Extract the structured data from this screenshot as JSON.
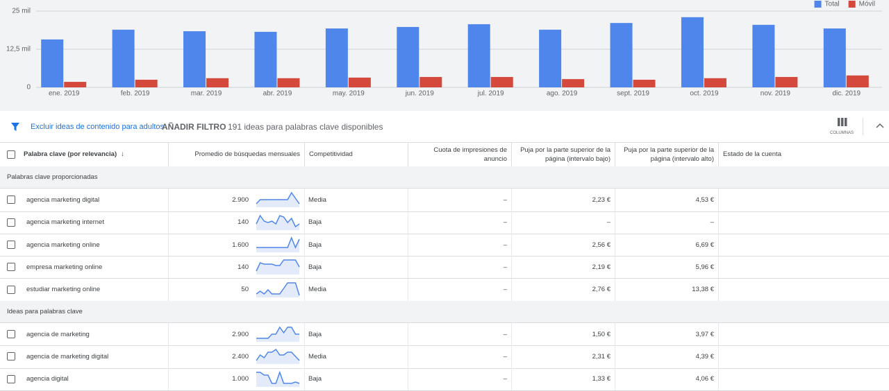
{
  "chart_data": {
    "type": "bar",
    "categories": [
      "ene. 2019",
      "feb. 2019",
      "mar. 2019",
      "abr. 2019",
      "may. 2019",
      "jun. 2019",
      "jul. 2019",
      "ago. 2019",
      "sept. 2019",
      "oct. 2019",
      "nov. 2019",
      "dic. 2019"
    ],
    "series": [
      {
        "name": "Total",
        "color": "#4f86ec",
        "values": [
          15700,
          18900,
          18400,
          18200,
          19300,
          19800,
          20700,
          18900,
          21100,
          23000,
          20500,
          19300
        ]
      },
      {
        "name": "Móvil",
        "color": "#d5493d",
        "values": [
          1800,
          2500,
          3000,
          3000,
          3200,
          3400,
          3400,
          2700,
          2500,
          3000,
          3400,
          3900
        ]
      }
    ],
    "ylim": [
      0,
      25000
    ],
    "yticks": [
      0,
      {
        "value": 12500,
        "label": "12,5 mil"
      },
      {
        "value": 25000,
        "label": "25 mil"
      }
    ],
    "grid": true,
    "legend": "top-right"
  },
  "toolbar": {
    "exclude": "Excluir ideas de contenido para adultos",
    "add_filter": "AÑADIR FILTRO",
    "count": "191 ideas para palabras clave disponibles",
    "columns": "COLUMNAS"
  },
  "table": {
    "headers": [
      "Palabra clave (por relevancia)",
      "Promedio de búsquedas mensuales",
      "Competitividad",
      "Cuota de impresiones de anuncio",
      "Puja por la parte superior de la página (intervalo bajo)",
      "Puja por la parte superior de la página (intervalo alto)",
      "Estado de la cuenta"
    ],
    "sections": [
      {
        "title": "Palabras clave proporcionadas",
        "rows": [
          {
            "keyword": "agencia marketing digital",
            "searches": "2.900",
            "trend": [
              2,
              5,
              5,
              5,
              5,
              5,
              5,
              5,
              5,
              10,
              6,
              2
            ],
            "competition": "Media",
            "share": "–",
            "bid_low": "2,23 €",
            "bid_high": "4,53 €"
          },
          {
            "keyword": "agencia marketing internet",
            "searches": "140",
            "trend": [
              4,
              10,
              6,
              5,
              6,
              4,
              10,
              9,
              5,
              8,
              2,
              4
            ],
            "competition": "Baja",
            "share": "–",
            "bid_low": "–",
            "bid_high": "–"
          },
          {
            "keyword": "agencia marketing online",
            "searches": "1.600",
            "trend": [
              3,
              3,
              3,
              3,
              3,
              3,
              3,
              3,
              3,
              10,
              3,
              9
            ],
            "competition": "Baja",
            "share": "–",
            "bid_low": "2,56 €",
            "bid_high": "6,69 €"
          },
          {
            "keyword": "empresa marketing online",
            "searches": "140",
            "trend": [
              2,
              8,
              7,
              7,
              7,
              6,
              6,
              10,
              10,
              10,
              10,
              5
            ],
            "competition": "Baja",
            "share": "–",
            "bid_low": "2,19 €",
            "bid_high": "5,96 €"
          },
          {
            "keyword": "estudiar marketing online",
            "searches": "50",
            "trend": [
              2,
              4,
              2,
              5,
              2,
              2,
              2,
              6,
              10,
              10,
              10,
              1
            ],
            "competition": "Media",
            "share": "–",
            "bid_low": "2,76 €",
            "bid_high": "13,38 €"
          }
        ]
      },
      {
        "title": "Ideas para palabras clave",
        "rows": [
          {
            "keyword": "agencia de marketing",
            "searches": "2.900",
            "trend": [
              2,
              2,
              2,
              2,
              5,
              5,
              10,
              6,
              10,
              10,
              5,
              5
            ],
            "competition": "Baja",
            "share": "–",
            "bid_low": "1,50 €",
            "bid_high": "3,97 €"
          },
          {
            "keyword": "agencia de marketing digital",
            "searches": "2.400",
            "trend": [
              2,
              6,
              4,
              8,
              8,
              10,
              6,
              6,
              8,
              8,
              5,
              2
            ],
            "competition": "Media",
            "share": "–",
            "bid_low": "2,31 €",
            "bid_high": "4,39 €"
          },
          {
            "keyword": "agencia digital",
            "searches": "1.000",
            "trend": [
              10,
              10,
              8,
              8,
              2,
              2,
              10,
              2,
              2,
              2,
              3,
              2
            ],
            "competition": "Baja",
            "share": "–",
            "bid_low": "1,33 €",
            "bid_high": "4,06 €"
          }
        ]
      }
    ]
  }
}
